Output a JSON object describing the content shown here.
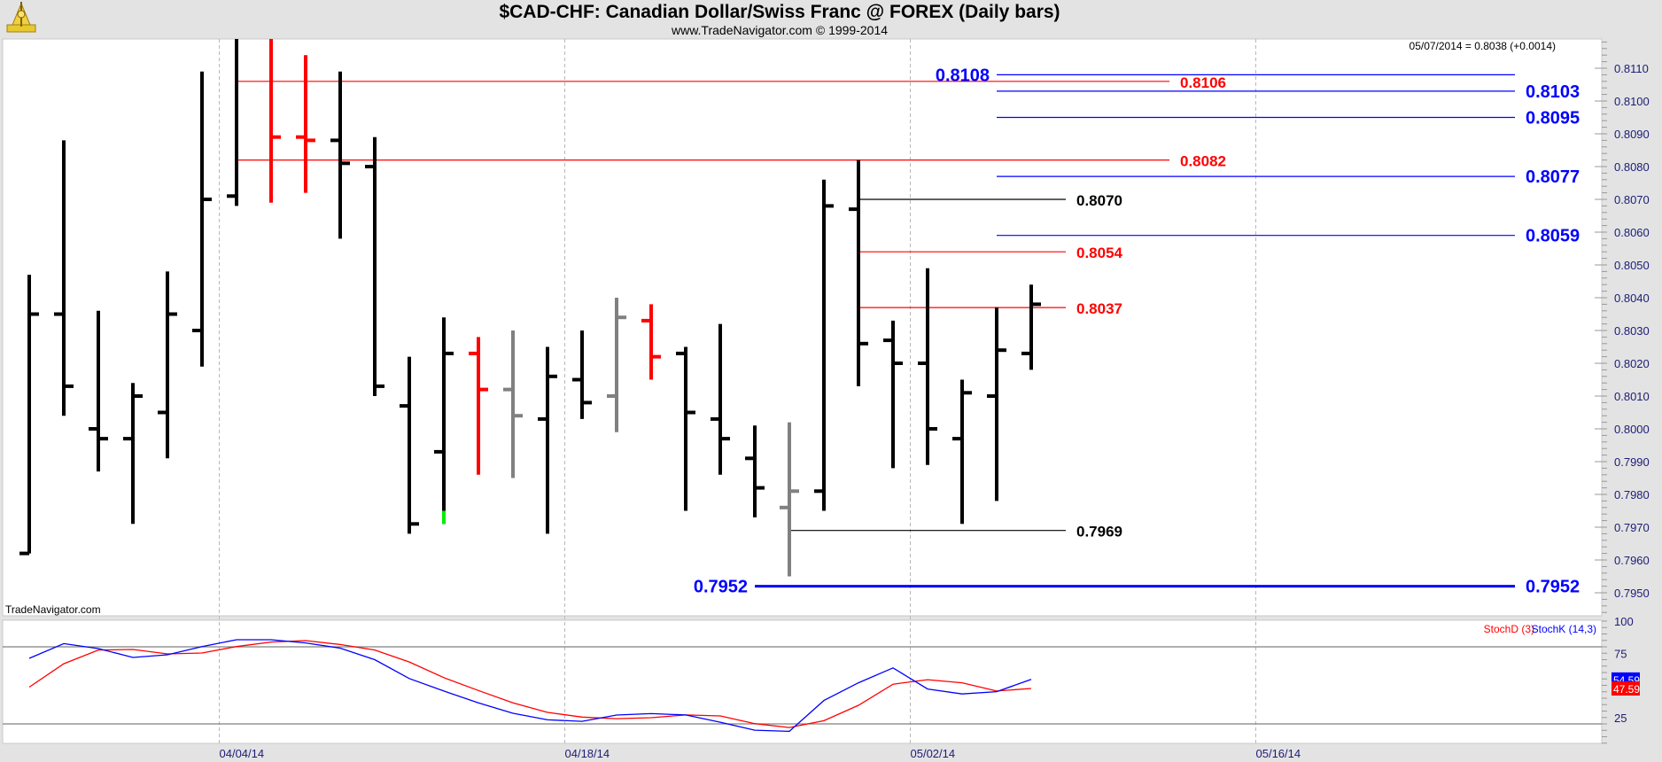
{
  "header": {
    "title": "$CAD-CHF:  Canadian Dollar/Swiss Franc @ FOREX  (Daily bars)",
    "subtitle": "www.TradeNavigator.com © 1999-2014",
    "last_quote": "05/07/2014 = 0.8038 (+0.0014)",
    "watermark": "TradeNavigator.com",
    "logo": "trade-navigator-sextant-logo"
  },
  "colors": {
    "up": "#000000",
    "red": "#ff0000",
    "gray": "#808080",
    "green": "#00ee00",
    "blue": "#0000ff",
    "grid": "#b8b8b8",
    "axis_text": "#1c1c78"
  },
  "chart_data": [
    {
      "type": "ohlc",
      "title": "$CAD-CHF Daily bars",
      "ylim": [
        0.7943,
        0.8119
      ],
      "y_ticks": [
        "0.7950",
        "0.7960",
        "0.7970",
        "0.7980",
        "0.7990",
        "0.8000",
        "0.8010",
        "0.8020",
        "0.8030",
        "0.8040",
        "0.8050",
        "0.8060",
        "0.8070",
        "0.8080",
        "0.8090",
        "0.8100",
        "0.8110"
      ],
      "date_labels": [
        {
          "label": "04/04/14",
          "bar": 5.5
        },
        {
          "label": "04/18/14",
          "bar": 15.5
        },
        {
          "label": "05/02/14",
          "bar": 25.5
        },
        {
          "label": "05/16/14",
          "bar": 35.5
        }
      ],
      "bars": [
        {
          "date": "03/27/14",
          "o": 0.7962,
          "h": 0.8047,
          "l": 0.7962,
          "c": 0.8035,
          "color": "black"
        },
        {
          "date": "03/28/14",
          "o": 0.8035,
          "h": 0.8088,
          "l": 0.8004,
          "c": 0.8013,
          "color": "black"
        },
        {
          "date": "03/31/14",
          "o": 0.8,
          "h": 0.8036,
          "l": 0.7987,
          "c": 0.7997,
          "color": "black"
        },
        {
          "date": "04/01/14",
          "o": 0.7997,
          "h": 0.8014,
          "l": 0.7971,
          "c": 0.801,
          "color": "black"
        },
        {
          "date": "04/02/14",
          "o": 0.8005,
          "h": 0.8048,
          "l": 0.7991,
          "c": 0.8035,
          "color": "black"
        },
        {
          "date": "04/03/14",
          "o": 0.803,
          "h": 0.8109,
          "l": 0.8019,
          "c": 0.807,
          "color": "black"
        },
        {
          "date": "04/04/14",
          "o": 0.8071,
          "h": 0.8125,
          "l": 0.8068,
          "c": 0.8122,
          "color": "black"
        },
        {
          "date": "04/07/14",
          "o": 0.8122,
          "h": 0.8125,
          "l": 0.8069,
          "c": 0.8089,
          "color": "red"
        },
        {
          "date": "04/08/14",
          "o": 0.8089,
          "h": 0.8114,
          "l": 0.8072,
          "c": 0.8088,
          "color": "red"
        },
        {
          "date": "04/09/14",
          "o": 0.8088,
          "h": 0.8109,
          "l": 0.8058,
          "c": 0.8081,
          "color": "black"
        },
        {
          "date": "04/10/14",
          "o": 0.808,
          "h": 0.8089,
          "l": 0.801,
          "c": 0.8013,
          "color": "black"
        },
        {
          "date": "04/11/14",
          "o": 0.8007,
          "h": 0.8022,
          "l": 0.7968,
          "c": 0.7971,
          "color": "black"
        },
        {
          "date": "04/14/14",
          "o": 0.7993,
          "h": 0.8034,
          "l": 0.7971,
          "c": 0.8023,
          "color": "black",
          "tail_green": 0.7975
        },
        {
          "date": "04/15/14",
          "o": 0.8023,
          "h": 0.8028,
          "l": 0.7986,
          "c": 0.8012,
          "color": "red"
        },
        {
          "date": "04/16/14",
          "o": 0.8012,
          "h": 0.803,
          "l": 0.7985,
          "c": 0.8004,
          "color": "gray"
        },
        {
          "date": "04/17/14",
          "o": 0.8003,
          "h": 0.8025,
          "l": 0.7968,
          "c": 0.8016,
          "color": "black"
        },
        {
          "date": "04/18/14",
          "o": 0.8015,
          "h": 0.803,
          "l": 0.8003,
          "c": 0.8008,
          "color": "black"
        },
        {
          "date": "04/21/14",
          "o": 0.801,
          "h": 0.804,
          "l": 0.7999,
          "c": 0.8034,
          "color": "gray"
        },
        {
          "date": "04/22/14",
          "o": 0.8033,
          "h": 0.8038,
          "l": 0.8015,
          "c": 0.8022,
          "color": "red"
        },
        {
          "date": "04/23/14",
          "o": 0.8023,
          "h": 0.8025,
          "l": 0.7975,
          "c": 0.8005,
          "color": "black"
        },
        {
          "date": "04/24/14",
          "o": 0.8003,
          "h": 0.8032,
          "l": 0.7986,
          "c": 0.7997,
          "color": "black"
        },
        {
          "date": "04/25/14",
          "o": 0.7991,
          "h": 0.8001,
          "l": 0.7973,
          "c": 0.7982,
          "color": "black"
        },
        {
          "date": "04/28/14",
          "o": 0.7976,
          "h": 0.8002,
          "l": 0.7955,
          "c": 0.7981,
          "color": "gray"
        },
        {
          "date": "04/29/14",
          "o": 0.7981,
          "h": 0.8076,
          "l": 0.7975,
          "c": 0.8068,
          "color": "black"
        },
        {
          "date": "04/30/14",
          "o": 0.8067,
          "h": 0.8082,
          "l": 0.8013,
          "c": 0.8026,
          "color": "black"
        },
        {
          "date": "05/01/14",
          "o": 0.8027,
          "h": 0.8033,
          "l": 0.7988,
          "c": 0.802,
          "color": "black"
        },
        {
          "date": "05/02/14",
          "o": 0.802,
          "h": 0.8049,
          "l": 0.7989,
          "c": 0.8,
          "color": "black"
        },
        {
          "date": "05/05/14",
          "o": 0.7997,
          "h": 0.8015,
          "l": 0.7971,
          "c": 0.8011,
          "color": "black"
        },
        {
          "date": "05/06/14",
          "o": 0.801,
          "h": 0.8037,
          "l": 0.7978,
          "c": 0.8024,
          "color": "black"
        },
        {
          "date": "05/07/14",
          "o": 0.8023,
          "h": 0.8044,
          "l": 0.8018,
          "c": 0.8038,
          "color": "black"
        }
      ],
      "levels": [
        {
          "label": "0.8106",
          "price": 0.8106,
          "color": "red",
          "start_bar": 6,
          "end_bar": 33,
          "label_side": "right",
          "big": false
        },
        {
          "label": "0.8082",
          "price": 0.8082,
          "color": "red",
          "start_bar": 6,
          "end_bar": 33,
          "label_side": "right",
          "big": false
        },
        {
          "label": "0.8108",
          "price": 0.8108,
          "color": "blue",
          "start_bar": 28,
          "end_bar": 43,
          "label_side": "left",
          "big": true
        },
        {
          "label": "0.8103",
          "price": 0.8103,
          "color": "blue",
          "start_bar": 28,
          "end_bar": 43,
          "label_side": "right",
          "big": true
        },
        {
          "label": "0.8095",
          "price": 0.8095,
          "color": "blue",
          "start_bar": 28,
          "end_bar": 43,
          "label_side": "right",
          "big": true
        },
        {
          "label": "0.8077",
          "price": 0.8077,
          "color": "blue",
          "start_bar": 28,
          "end_bar": 43,
          "label_side": "right",
          "big": true
        },
        {
          "label": "0.8059",
          "price": 0.8059,
          "color": "blue",
          "start_bar": 28,
          "end_bar": 43,
          "label_side": "right",
          "big": true
        },
        {
          "label": "0.8070",
          "price": 0.807,
          "color": "black",
          "start_bar": 24,
          "end_bar": 30,
          "label_side": "right",
          "big": false
        },
        {
          "label": "0.8054",
          "price": 0.8054,
          "color": "red",
          "start_bar": 24,
          "end_bar": 30,
          "label_side": "right",
          "big": false
        },
        {
          "label": "0.8037",
          "price": 0.8037,
          "color": "red",
          "start_bar": 24,
          "end_bar": 30,
          "label_side": "right",
          "big": false
        },
        {
          "label": "0.7969",
          "price": 0.7969,
          "color": "black",
          "start_bar": 22,
          "end_bar": 30,
          "label_side": "right",
          "big": false
        },
        {
          "label": "0.7952",
          "price": 0.7952,
          "color": "blue",
          "start_bar": 21,
          "end_bar": 43,
          "label_side": "both",
          "big": true,
          "thick": true
        }
      ]
    },
    {
      "type": "line",
      "title": "Stochastic",
      "ylim": [
        0,
        100
      ],
      "y_ticks": [
        "100",
        "75",
        "25"
      ],
      "reference_lines": [
        80,
        20
      ],
      "legend": [
        "StochD (3)",
        "StochK (14,3)"
      ],
      "legend_position": "top-right",
      "series": [
        {
          "name": "StochK (14,3)",
          "color": "blue",
          "last_label": "54.59",
          "values": [
            71,
            82.5,
            78.6,
            71.7,
            73.8,
            80.2,
            85.5,
            85.5,
            83,
            79,
            70,
            55.3,
            45.6,
            36.4,
            28.3,
            23.2,
            22,
            26.9,
            28,
            27,
            21.3,
            15.1,
            14.2,
            38.2,
            52,
            63.6,
            47.2,
            43.3,
            45.1,
            54.59
          ]
        },
        {
          "name": "StochD (3)",
          "color": "red",
          "last_label": "47.59",
          "values": [
            48.6,
            66.8,
            77.5,
            77.9,
            74.5,
            75.2,
            80.2,
            83.7,
            84.8,
            81.8,
            77.5,
            68.2,
            56,
            46,
            36.4,
            29,
            25.3,
            24.1,
            24.8,
            27,
            26.2,
            20.2,
            17.2,
            22.5,
            34.5,
            50.9,
            54.4,
            52,
            45.6,
            47.59
          ]
        }
      ]
    }
  ]
}
